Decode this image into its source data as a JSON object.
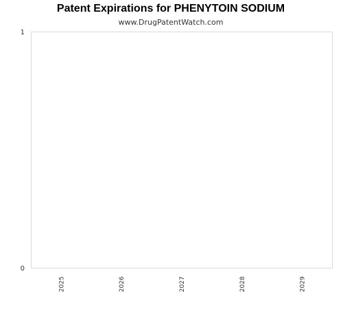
{
  "chart_data": {
    "type": "bar",
    "title": "Patent Expirations for PHENYTOIN SODIUM",
    "subtitle": "www.DrugPatentWatch.com",
    "categories": [
      "2025",
      "2026",
      "2027",
      "2028",
      "2029"
    ],
    "values": [
      0,
      0,
      0,
      0,
      0
    ],
    "xlabel": "",
    "ylabel": "",
    "ylim": [
      0,
      1
    ],
    "yticks": [
      "0",
      "1"
    ],
    "grid": false,
    "legend": "none",
    "colors": {
      "frame": "#d9d9d9",
      "text": "#333333",
      "bar": "#4a7ebb"
    }
  }
}
